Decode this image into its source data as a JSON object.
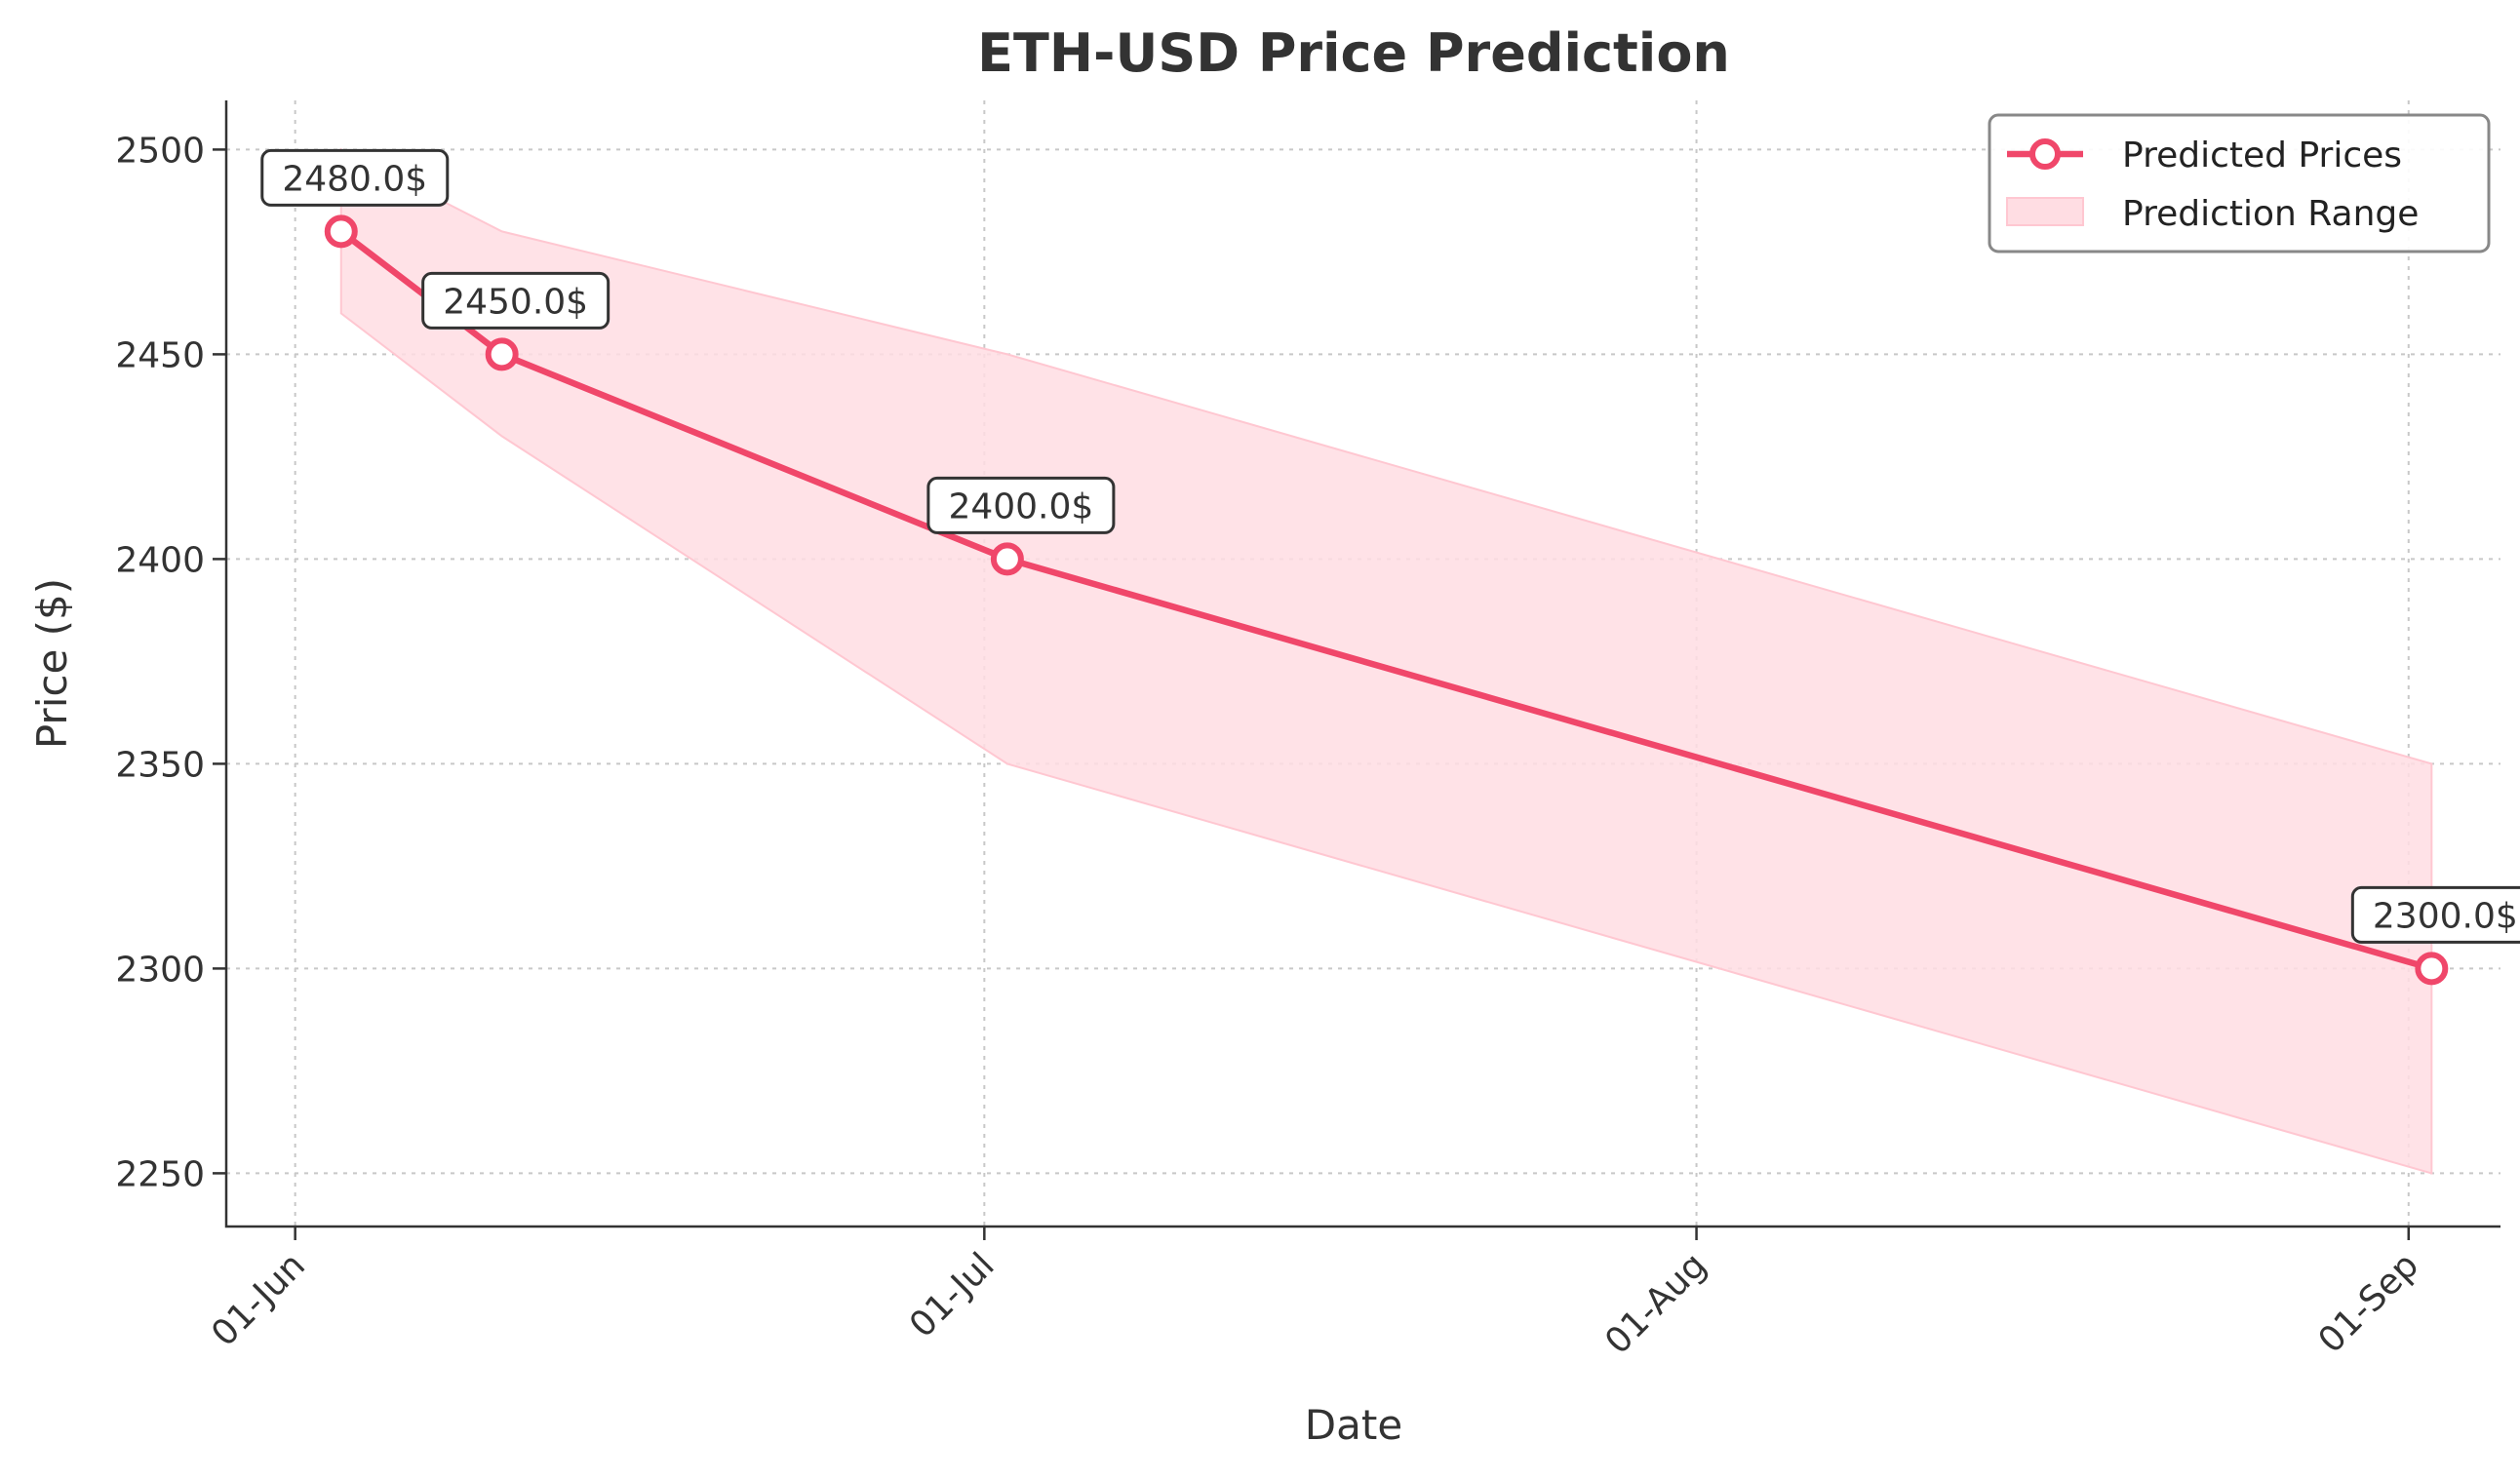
{
  "chart_data": {
    "type": "line",
    "title": "ETH-USD Price Prediction",
    "xlabel": "Date",
    "ylabel": "Price ($)",
    "x_ticks": [
      "01-Jun",
      "01-Jul",
      "01-Aug",
      "01-Sep"
    ],
    "y_ticks": [
      2250,
      2300,
      2350,
      2400,
      2450,
      2500
    ],
    "ylim": [
      2237,
      2512
    ],
    "xlim": [
      "2024-05-29",
      "2024-09-05"
    ],
    "grid": true,
    "legend_position": "top-right",
    "series": [
      {
        "name": "Predicted Prices",
        "color": "#f0476a",
        "points": [
          {
            "x": "2024-06-03",
            "y": 2480.0
          },
          {
            "x": "2024-06-10",
            "y": 2450.0
          },
          {
            "x": "2024-07-02",
            "y": 2400.0
          },
          {
            "x": "2024-09-02",
            "y": 2300.0
          }
        ]
      }
    ],
    "range": {
      "name": "Prediction Range",
      "color": "#ffdde3",
      "upper": [
        {
          "x": "2024-06-03",
          "y": 2500
        },
        {
          "x": "2024-06-10",
          "y": 2480
        },
        {
          "x": "2024-07-02",
          "y": 2450
        },
        {
          "x": "2024-09-02",
          "y": 2350
        }
      ],
      "lower": [
        {
          "x": "2024-06-03",
          "y": 2460
        },
        {
          "x": "2024-06-10",
          "y": 2430
        },
        {
          "x": "2024-07-02",
          "y": 2350
        },
        {
          "x": "2024-09-02",
          "y": 2250
        }
      ]
    },
    "annotations": [
      "2480.0$",
      "2450.0$",
      "2400.0$",
      "2300.0$"
    ]
  }
}
